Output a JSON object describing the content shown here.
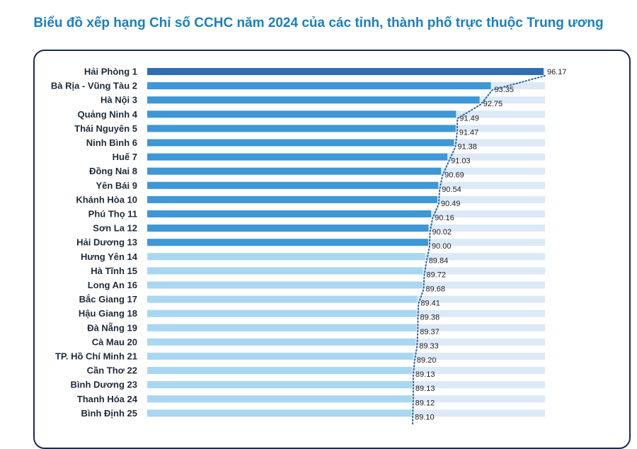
{
  "title": "Biểu đồ xếp hạng Chỉ số CCHC năm 2024 của các tỉnh, thành phố trực thuộc Trung ương",
  "colors": {
    "title": "#1b7fc0",
    "top1": "#2f6db5",
    "group_high": "#3e97d6",
    "group_mid": "#a9d7f2",
    "track": "#dde9f6",
    "frame": "#1c2c4a",
    "trend": "#2a66a8"
  },
  "chart_data": {
    "type": "bar",
    "orientation": "horizontal",
    "title": "Biểu đồ xếp hạng Chỉ số CCHC năm 2024 của các tỉnh, thành phố trực thuộc Trung ương",
    "xlim": [
      0,
      100
    ],
    "grid": false,
    "legend": "none",
    "categories": [
      "Hải Phòng  1",
      "Bà Rịa - Vũng Tàu  2",
      "Hà Nội  3",
      "Quảng Ninh  4",
      "Thái Nguyên  5",
      "Ninh Bình  6",
      "Huế  7",
      "Đồng Nai  8",
      "Yên Bái  9",
      "Khánh Hòa  10",
      "Phú Thọ 11",
      "Sơn La 12",
      "Hải Dương 13",
      "Hưng Yên 14",
      "Hà Tĩnh 15",
      "Long An 16",
      "Bắc Giang 17",
      "Hậu Giang 18",
      "Đà Nẵng 19",
      "Cà Mau 20",
      "TP. Hồ Chí Minh 21",
      "Cần Thơ 22",
      "Bình Dương 23",
      "Thanh Hóa 24",
      "Bình Định 25"
    ],
    "values": [
      96.17,
      93.35,
      92.75,
      91.49,
      91.47,
      91.38,
      91.03,
      90.69,
      90.54,
      90.49,
      90.16,
      90.02,
      90.0,
      89.84,
      89.72,
      89.68,
      89.41,
      89.38,
      89.37,
      89.33,
      89.2,
      89.13,
      89.13,
      89.12,
      89.1
    ],
    "value_labels": [
      "96.17",
      "93.35",
      "92.75",
      "91.49",
      "91.47",
      "91.38",
      "91.03",
      "90.69",
      "90.54",
      "90.49",
      "90.16",
      "90.02",
      "90.00",
      "89.84",
      "89.72",
      "89.68",
      "89.41",
      "89.38",
      "89.37",
      "89.33",
      "89.20",
      "89.13",
      "89.13",
      "89.12",
      "89.10"
    ],
    "bar_groups": [
      "top1",
      "high",
      "high",
      "high",
      "high",
      "high",
      "high",
      "high",
      "high",
      "high",
      "high",
      "high",
      "high",
      "mid",
      "mid",
      "mid",
      "mid",
      "mid",
      "mid",
      "mid",
      "mid",
      "mid",
      "mid",
      "mid",
      "mid"
    ],
    "trend_line": "dotted"
  }
}
